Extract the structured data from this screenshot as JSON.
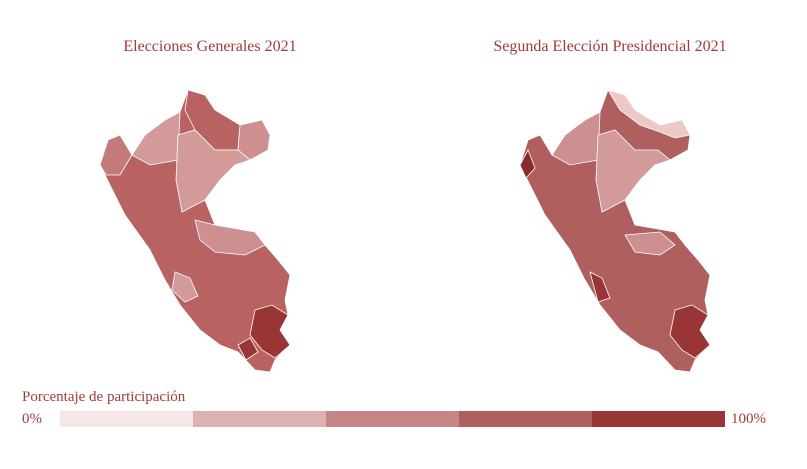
{
  "maps": [
    {
      "title": "Elecciones Generales 2021"
    },
    {
      "title": "Segunda Elección Presidencial 2021"
    }
  ],
  "legend": {
    "title": "Porcentaje de participación",
    "min_label": "0%",
    "max_label": "100%",
    "colors": [
      "#f7e6e6",
      "#ddb2b2",
      "#c78686",
      "#b05f5f",
      "#9a3535"
    ]
  }
}
